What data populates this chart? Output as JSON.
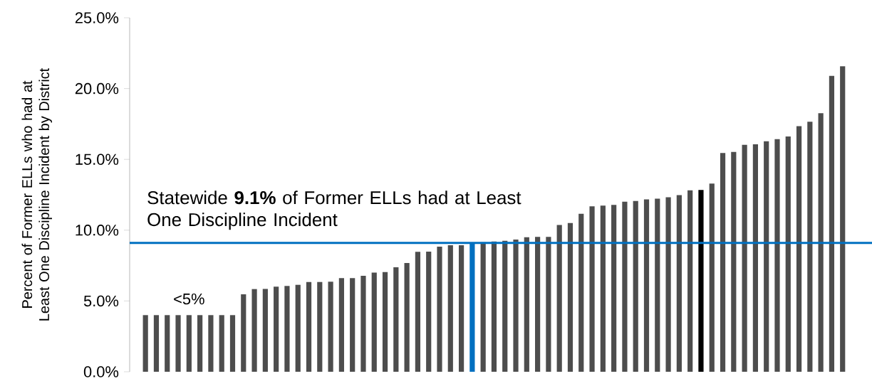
{
  "chart_data": {
    "type": "bar",
    "ylabel": "Percent of Former ELLs who had at Least One Discipline Incident by District",
    "categories": [
      null,
      null,
      null,
      null,
      null,
      null,
      null,
      null,
      null,
      null,
      null,
      null,
      null,
      null,
      null,
      null,
      null,
      null,
      null,
      null,
      null,
      null,
      null,
      null,
      null,
      null,
      null,
      null,
      null,
      null,
      null,
      null,
      null,
      null,
      null,
      null,
      null,
      null,
      null,
      null,
      null,
      null,
      null,
      null,
      null,
      null,
      null,
      null,
      null,
      null,
      null,
      null,
      null,
      null,
      null,
      null,
      null,
      null,
      null,
      null,
      null,
      null,
      null,
      null,
      null
    ],
    "values": [
      4.0,
      4.0,
      4.0,
      4.0,
      4.0,
      4.0,
      4.0,
      4.0,
      4.0,
      5.47,
      5.84,
      5.85,
      6.01,
      6.06,
      6.14,
      6.34,
      6.34,
      6.36,
      6.61,
      6.62,
      6.78,
      7.0,
      7.04,
      7.38,
      7.68,
      8.47,
      8.49,
      8.84,
      8.94,
      8.94,
      9.1,
      9.15,
      9.2,
      9.25,
      9.34,
      9.5,
      9.52,
      9.52,
      10.37,
      10.5,
      11.16,
      11.68,
      11.74,
      11.78,
      12.01,
      12.06,
      12.18,
      12.23,
      12.33,
      12.48,
      12.82,
      12.84,
      13.29,
      15.45,
      15.53,
      16.03,
      16.06,
      16.28,
      16.43,
      16.62,
      17.35,
      17.66,
      18.26,
      20.9,
      21.57
    ],
    "colors": [
      "#4d4d4d",
      "#4d4d4d",
      "#4d4d4d",
      "#4d4d4d",
      "#4d4d4d",
      "#4d4d4d",
      "#4d4d4d",
      "#4d4d4d",
      "#4d4d4d",
      "#4d4d4d",
      "#4d4d4d",
      "#4d4d4d",
      "#4d4d4d",
      "#4d4d4d",
      "#4d4d4d",
      "#4d4d4d",
      "#4d4d4d",
      "#4d4d4d",
      "#4d4d4d",
      "#4d4d4d",
      "#4d4d4d",
      "#4d4d4d",
      "#4d4d4d",
      "#4d4d4d",
      "#4d4d4d",
      "#4d4d4d",
      "#4d4d4d",
      "#4d4d4d",
      "#4d4d4d",
      "#4d4d4d",
      "#0070c0",
      "#4d4d4d",
      "#4d4d4d",
      "#4d4d4d",
      "#4d4d4d",
      "#4d4d4d",
      "#4d4d4d",
      "#4d4d4d",
      "#4d4d4d",
      "#4d4d4d",
      "#4d4d4d",
      "#4d4d4d",
      "#4d4d4d",
      "#4d4d4d",
      "#4d4d4d",
      "#4d4d4d",
      "#4d4d4d",
      "#4d4d4d",
      "#4d4d4d",
      "#4d4d4d",
      "#4d4d4d",
      "#000000",
      "#4d4d4d",
      "#4d4d4d",
      "#4d4d4d",
      "#4d4d4d",
      "#4d4d4d",
      "#4d4d4d",
      "#4d4d4d",
      "#4d4d4d",
      "#4d4d4d",
      "#4d4d4d",
      "#4d4d4d",
      "#4d4d4d",
      "#4d4d4d"
    ],
    "ylim": [
      0,
      25
    ],
    "yticks": [
      {
        "value": 0,
        "label": "0.0%"
      },
      {
        "value": 5,
        "label": "5.0%"
      },
      {
        "value": 10,
        "label": "10.0%"
      },
      {
        "value": 15,
        "label": "15.0%"
      },
      {
        "value": 20,
        "label": "20.0%"
      },
      {
        "value": 25,
        "label": "25.0%"
      }
    ],
    "ref_lines": [
      {
        "axis": "y",
        "value": 9.1,
        "label": "Statewide **9.1%** of Former ELLs had at Least One Discipline Incident",
        "color": "#0070c0"
      }
    ],
    "annotations": [
      "<5%"
    ],
    "grid": false
  }
}
